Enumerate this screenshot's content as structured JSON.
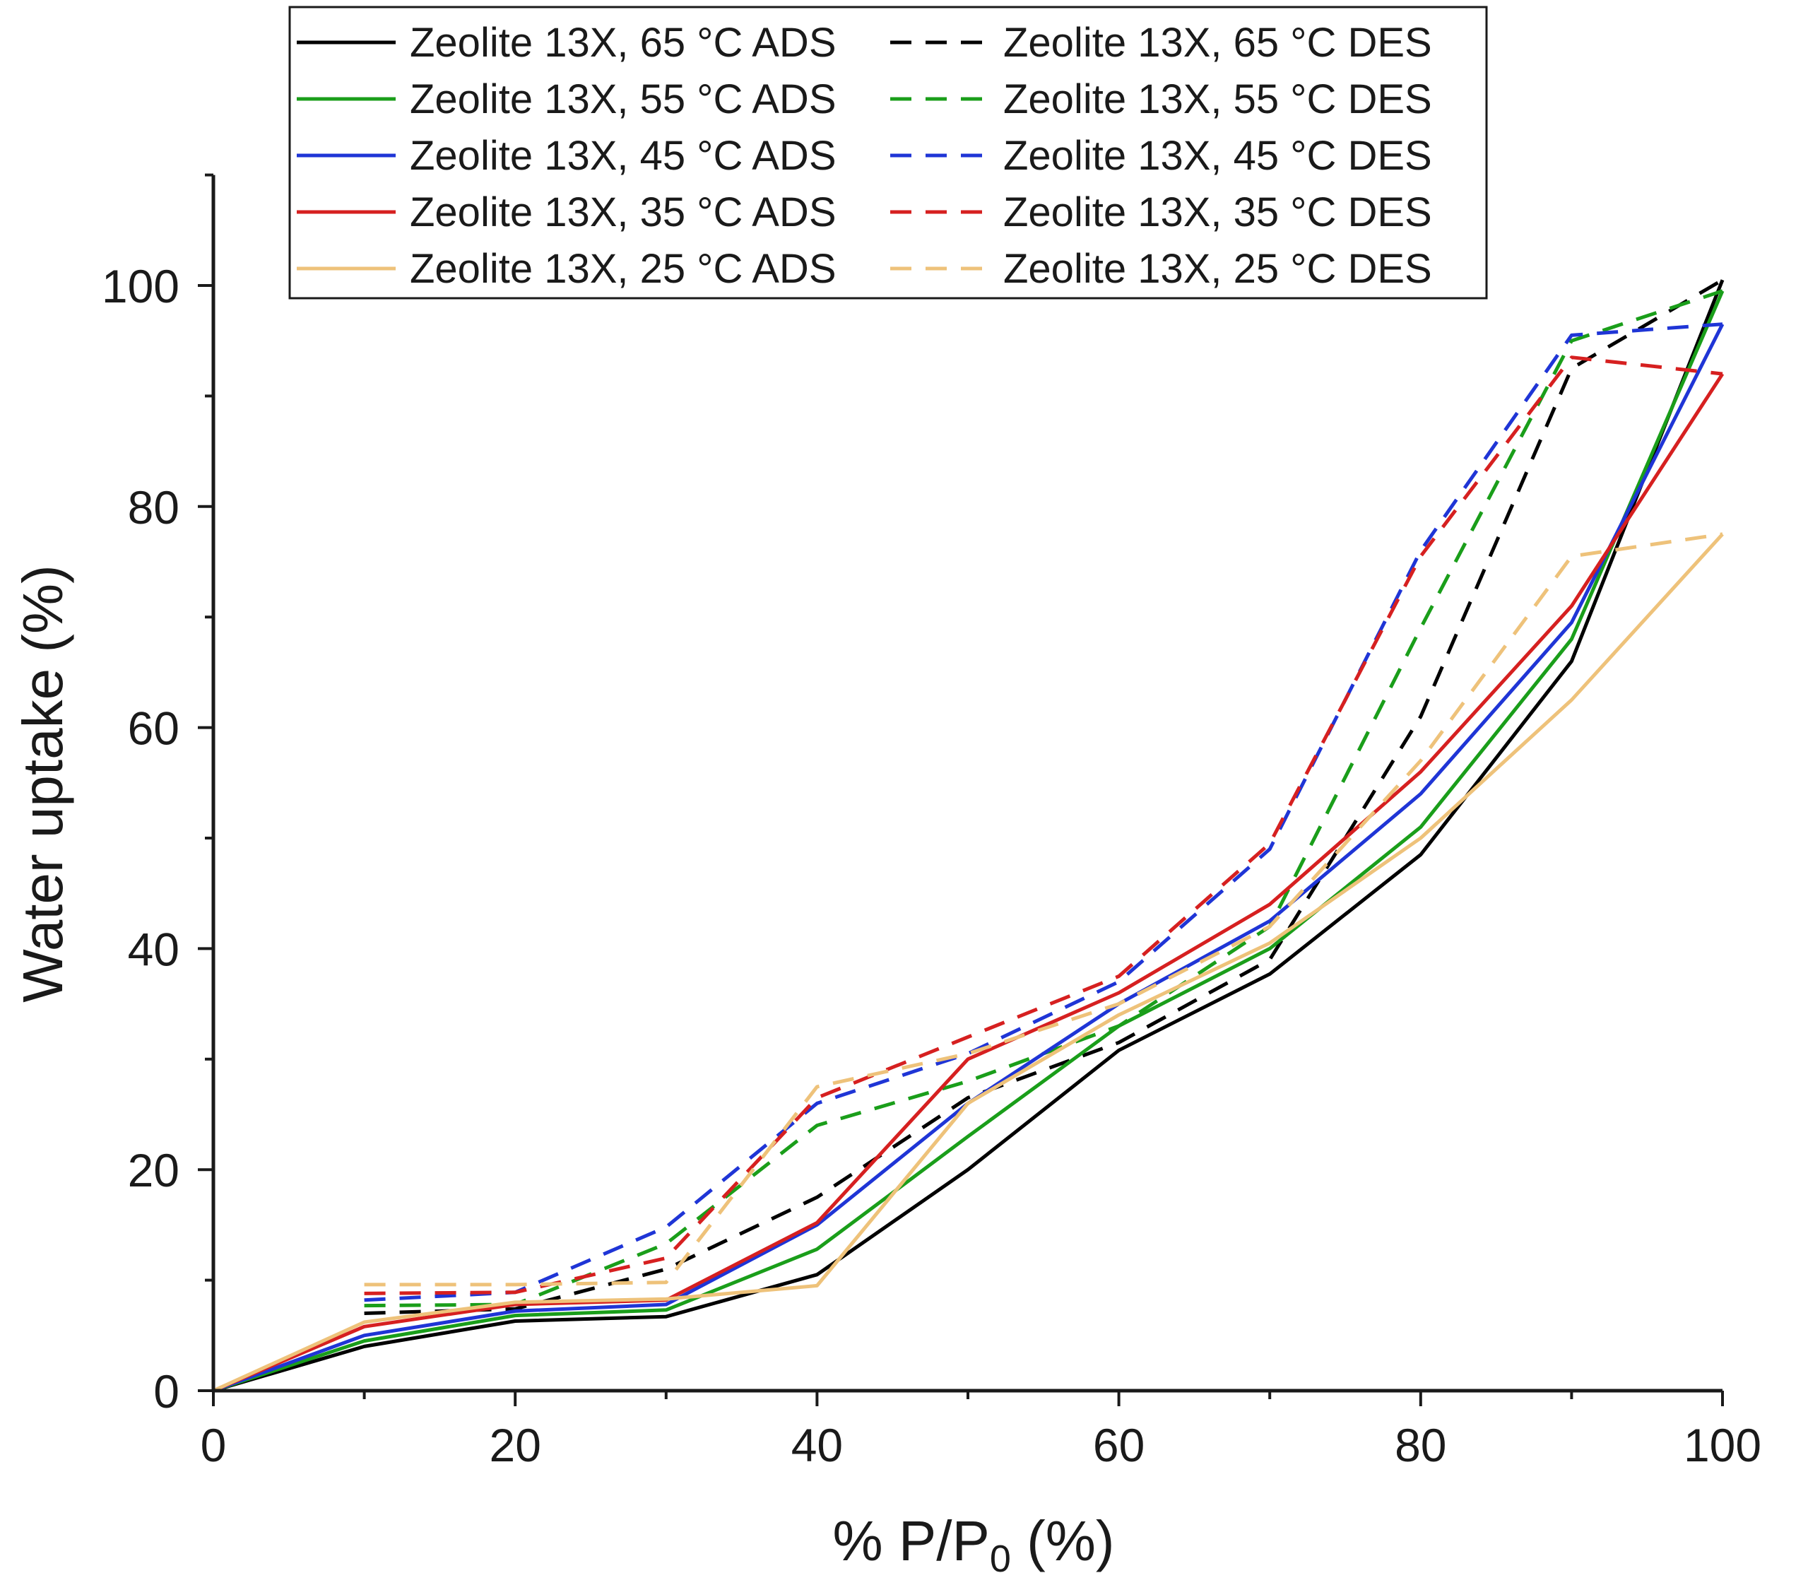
{
  "chart_data": {
    "type": "line",
    "title": "",
    "xlabel_prefix": "% P/P",
    "xlabel_subscript": "0",
    "xlabel_suffix": " (%)",
    "ylabel": "Water uptake (%)",
    "xlim": [
      0,
      100
    ],
    "ylim": [
      0,
      110
    ],
    "xticks": [
      0,
      20,
      40,
      60,
      80,
      100
    ],
    "yticks": [
      0,
      20,
      40,
      60,
      80,
      100
    ],
    "grid": false,
    "legend_position": "top",
    "series": [
      {
        "name": "Zeolite 13X, 65 °C ADS",
        "color": "#000000",
        "dash": "solid",
        "x": [
          0,
          10,
          20,
          30,
          40,
          50,
          60,
          70,
          80,
          90,
          100
        ],
        "y": [
          0,
          4,
          6.3,
          6.7,
          10.5,
          20,
          30.8,
          37.7,
          48.5,
          66,
          100.5
        ]
      },
      {
        "name": "Zeolite 13X, 65 °C DES",
        "color": "#000000",
        "dash": "dashed",
        "x": [
          10,
          20,
          30,
          40,
          50,
          60,
          70,
          80,
          90,
          100
        ],
        "y": [
          7,
          7.4,
          11,
          17.5,
          26.5,
          31.5,
          39,
          61,
          92.5,
          100.5
        ]
      },
      {
        "name": "Zeolite 13X, 55 °C ADS",
        "color": "#1a9e1a",
        "dash": "solid",
        "x": [
          0,
          10,
          20,
          30,
          40,
          50,
          60,
          70,
          80,
          90,
          100
        ],
        "y": [
          0,
          4.5,
          6.8,
          7.3,
          12.8,
          23,
          33,
          40,
          51,
          68,
          99.5
        ]
      },
      {
        "name": "Zeolite 13X, 55 °C DES",
        "color": "#1a9e1a",
        "dash": "dashed",
        "x": [
          10,
          20,
          30,
          40,
          50,
          60,
          70,
          80,
          90,
          100
        ],
        "y": [
          7.7,
          7.8,
          13.3,
          24,
          28,
          33,
          42,
          69,
          95,
          99.5
        ]
      },
      {
        "name": "Zeolite 13X, 45 °C ADS",
        "color": "#1f35d6",
        "dash": "solid",
        "x": [
          0,
          10,
          20,
          30,
          40,
          50,
          60,
          70,
          80,
          90,
          100
        ],
        "y": [
          0,
          5,
          7.2,
          7.8,
          15,
          26,
          35,
          42.5,
          54,
          69.5,
          96.5
        ]
      },
      {
        "name": "Zeolite 13X, 45 °C DES",
        "color": "#1f35d6",
        "dash": "dashed",
        "x": [
          10,
          20,
          30,
          40,
          50,
          60,
          70,
          80,
          90,
          100
        ],
        "y": [
          8.2,
          8.9,
          14.8,
          26,
          30.5,
          37,
          49,
          76,
          95.5,
          96.5
        ]
      },
      {
        "name": "Zeolite 13X, 35 °C ADS",
        "color": "#d62020",
        "dash": "solid",
        "x": [
          0,
          10,
          20,
          30,
          40,
          50,
          60,
          70,
          80,
          90,
          100
        ],
        "y": [
          0,
          5.8,
          7.8,
          8.2,
          15.2,
          30,
          36,
          44,
          56,
          71,
          92
        ]
      },
      {
        "name": "Zeolite 13X, 35 °C DES",
        "color": "#d62020",
        "dash": "dashed",
        "x": [
          10,
          20,
          30,
          40,
          50,
          60,
          70,
          80,
          90,
          100
        ],
        "y": [
          8.8,
          8.9,
          12,
          26.5,
          32,
          37.5,
          49.5,
          75.5,
          93.5,
          92
        ]
      },
      {
        "name": "Zeolite 13X, 25 °C ADS",
        "color": "#eec27a",
        "dash": "solid",
        "x": [
          0,
          10,
          20,
          30,
          40,
          50,
          60,
          70,
          80,
          90,
          100
        ],
        "y": [
          0,
          6.2,
          8,
          8.3,
          9.5,
          26,
          34,
          40.5,
          50,
          62.5,
          77.5
        ]
      },
      {
        "name": "Zeolite 13X, 25 °C DES",
        "color": "#eec27a",
        "dash": "dashed",
        "x": [
          10,
          20,
          30,
          40,
          50,
          60,
          70,
          80,
          90,
          100
        ],
        "y": [
          9.6,
          9.6,
          9.8,
          27.5,
          30.5,
          35,
          42,
          57,
          75.5,
          77.5
        ]
      }
    ]
  }
}
